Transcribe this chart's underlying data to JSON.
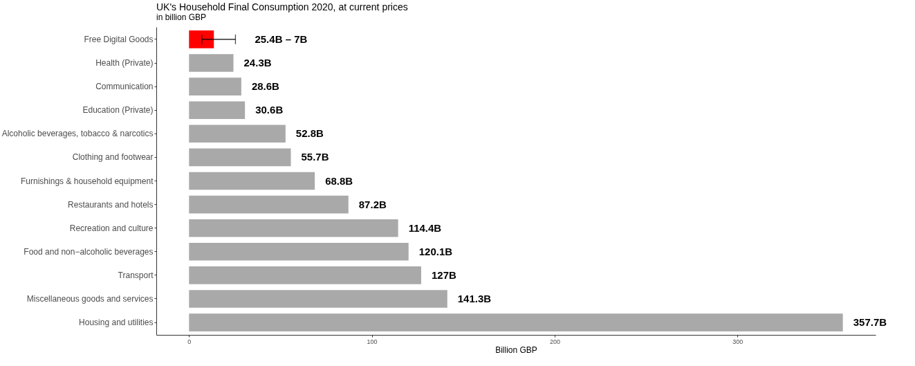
{
  "chart_data": {
    "type": "bar",
    "orientation": "horizontal",
    "title": "UK's Household Final Consumption 2020, at current prices",
    "subtitle": "in billion GBP",
    "xlabel": "Billion GBP",
    "categories": [
      "Free Digital Goods",
      "Health (Private)",
      "Communication",
      "Education (Private)",
      "Alcoholic beverages, tobacco & narcotics",
      "Clothing and footwear",
      "Furnishings & household equipment",
      "Restaurants and hotels",
      "Recreation and culture",
      "Food and non−alcoholic beverages",
      "Transport",
      "Miscellaneous goods and services",
      "Housing and utilities"
    ],
    "values": [
      13.6,
      24.3,
      28.6,
      30.6,
      52.8,
      55.7,
      68.8,
      87.2,
      114.4,
      120.1,
      127,
      141.3,
      357.7
    ],
    "colors": [
      "#ff0000",
      "#a9a9a9",
      "#a9a9a9",
      "#a9a9a9",
      "#a9a9a9",
      "#a9a9a9",
      "#a9a9a9",
      "#a9a9a9",
      "#a9a9a9",
      "#a9a9a9",
      "#a9a9a9",
      "#a9a9a9",
      "#a9a9a9"
    ],
    "errors": [
      [
        7,
        25.4
      ],
      null,
      null,
      null,
      null,
      null,
      null,
      null,
      null,
      null,
      null,
      null,
      null
    ],
    "annotations": [
      {
        "text": "25.4B – 7B",
        "x": 25.4,
        "y": "Free Digital Goods"
      }
    ],
    "value_labels": [
      null,
      "24.3B",
      "28.6B",
      "30.6B",
      "52.8B",
      "55.7B",
      "68.8B",
      "87.2B",
      "114.4B",
      "120.1B",
      "127B",
      "141.3B",
      "357.7B"
    ],
    "xlim": [
      -17.9,
      375.6
    ],
    "xticks": [
      0,
      100,
      200,
      300
    ],
    "grid": false
  }
}
